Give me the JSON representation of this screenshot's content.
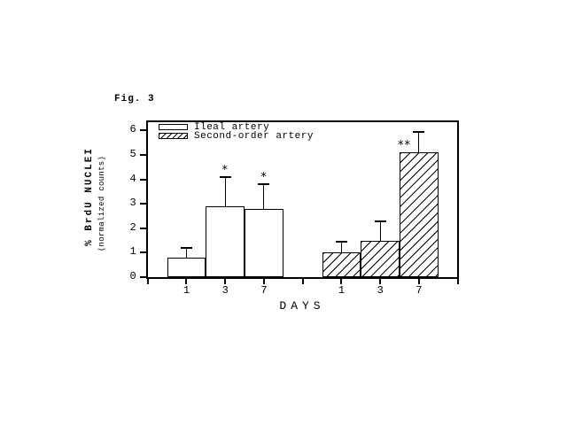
{
  "figure_label": "Fig. 3",
  "chart_data": {
    "type": "bar",
    "title": "",
    "categories": [
      "1",
      "3",
      "7"
    ],
    "series": [
      {
        "name": "Ileal artery",
        "fill": "open",
        "values": [
          0.8,
          2.9,
          2.8
        ],
        "errors_up": [
          0.4,
          1.2,
          1.0
        ],
        "sig": [
          "",
          "*",
          "*"
        ]
      },
      {
        "name": "Second-order artery",
        "fill": "hatched",
        "values": [
          1.0,
          1.5,
          5.1
        ],
        "errors_up": [
          0.45,
          0.8,
          0.85
        ],
        "sig": [
          "",
          "",
          "**"
        ]
      }
    ],
    "xlabel": "DAYS",
    "ylabel_line1": "% BrdU NUCLEI",
    "ylabel_line2": "(normalized counts)",
    "ylim": [
      0,
      6
    ],
    "yticks": [
      0,
      1,
      2,
      3,
      4,
      5,
      6
    ],
    "legend_position": "top-left",
    "grid": false,
    "colors": {
      "ink": "#000000",
      "background": "#ffffff"
    }
  }
}
